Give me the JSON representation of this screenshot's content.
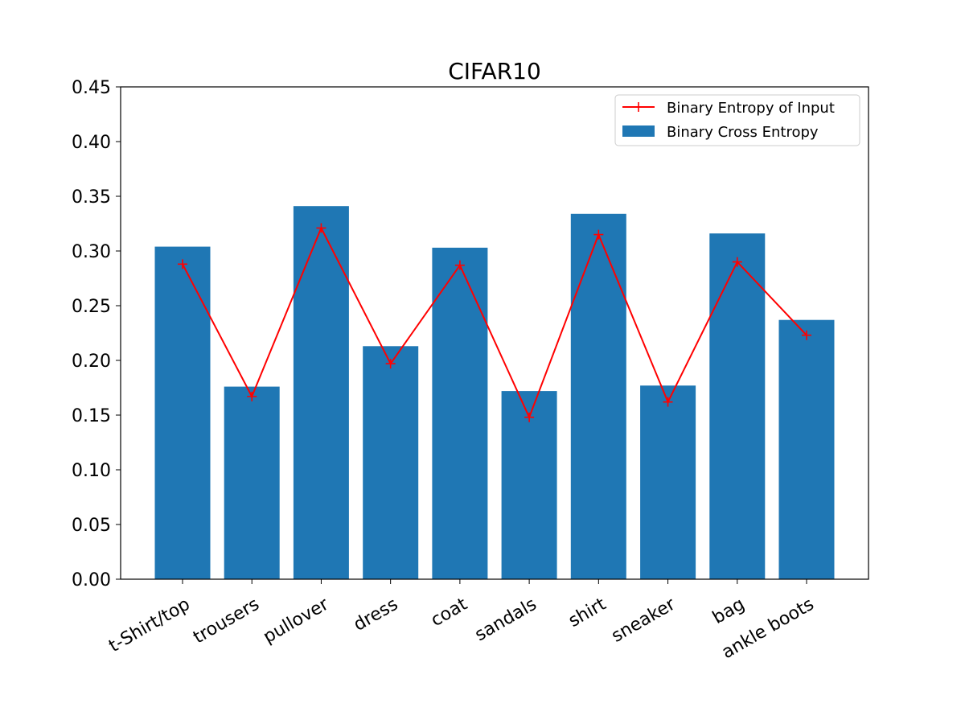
{
  "chart_data": {
    "type": "bar",
    "title": "CIFAR10",
    "xlabel": "",
    "ylabel": "",
    "categories": [
      "t-Shirt/top",
      "trousers",
      "pullover",
      "dress",
      "coat",
      "sandals",
      "shirt",
      "sneaker",
      "bag",
      "ankle boots"
    ],
    "ylim": [
      0,
      0.45
    ],
    "yticks": [
      "0.00",
      "0.05",
      "0.10",
      "0.15",
      "0.20",
      "0.25",
      "0.30",
      "0.35",
      "0.40",
      "0.45"
    ],
    "grid": false,
    "legend_position": "top-right",
    "series": [
      {
        "name": "Binary Cross Entropy",
        "kind": "bar",
        "color": "#1f77b4",
        "values": [
          0.304,
          0.176,
          0.341,
          0.213,
          0.303,
          0.172,
          0.334,
          0.177,
          0.316,
          0.237
        ]
      },
      {
        "name": "Binary Entropy of Input",
        "kind": "line",
        "marker": "plus",
        "color": "#ff0000",
        "values": [
          0.288,
          0.167,
          0.321,
          0.197,
          0.287,
          0.148,
          0.315,
          0.162,
          0.29,
          0.223
        ]
      }
    ]
  }
}
